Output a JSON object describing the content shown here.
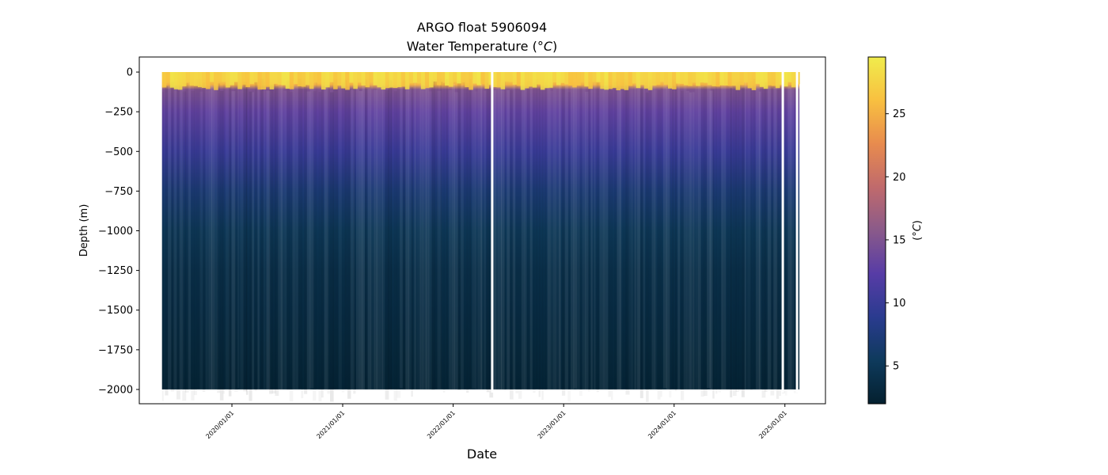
{
  "chart_data": {
    "type": "heatmap",
    "title": "ARGO float 5906094",
    "subtitle_prefix": "Water Temperature (",
    "subtitle_unit": "°C",
    "subtitle_suffix": ")",
    "xlabel": "Date",
    "ylabel": "Depth (m)",
    "x_ticks": [
      "2020/01/01",
      "2021/01/01",
      "2022/01/01",
      "2023/01/01",
      "2024/01/01",
      "2025/01/01"
    ],
    "y_ticks": [
      0,
      -250,
      -500,
      -750,
      -1000,
      -1250,
      -1500,
      -1750,
      -2000
    ],
    "xlim": [
      "2019-03-01",
      "2025-05-15"
    ],
    "ylim": [
      -2090,
      95
    ],
    "data_x_range": [
      "2019-05-15",
      "2025-02-18"
    ],
    "data_depth_range": [
      0,
      -2000
    ],
    "colorbar": {
      "label_prefix": "(",
      "label_unit": "°C",
      "label_suffix": ")",
      "ticks": [
        5,
        10,
        15,
        20,
        25
      ],
      "range": [
        2,
        29.5
      ],
      "colormap": "thermal",
      "colors": [
        "#04202f",
        "#0e3a5c",
        "#2a3b8f",
        "#573ca6",
        "#8a5a8a",
        "#c06a6c",
        "#e88b4e",
        "#f8c040",
        "#f0ec4c"
      ]
    },
    "temperature_profile": [
      {
        "depth": 0,
        "temp": 28.5
      },
      {
        "depth": -40,
        "temp": 28
      },
      {
        "depth": -80,
        "temp": 25
      },
      {
        "depth": -110,
        "temp": 15
      },
      {
        "depth": -250,
        "temp": 13
      },
      {
        "depth": -500,
        "temp": 10
      },
      {
        "depth": -750,
        "temp": 7
      },
      {
        "depth": -1000,
        "temp": 5
      },
      {
        "depth": -1250,
        "temp": 4
      },
      {
        "depth": -1500,
        "temp": 3.5
      },
      {
        "depth": -1750,
        "temp": 3
      },
      {
        "depth": -2000,
        "temp": 2.5
      }
    ],
    "grid": false
  }
}
